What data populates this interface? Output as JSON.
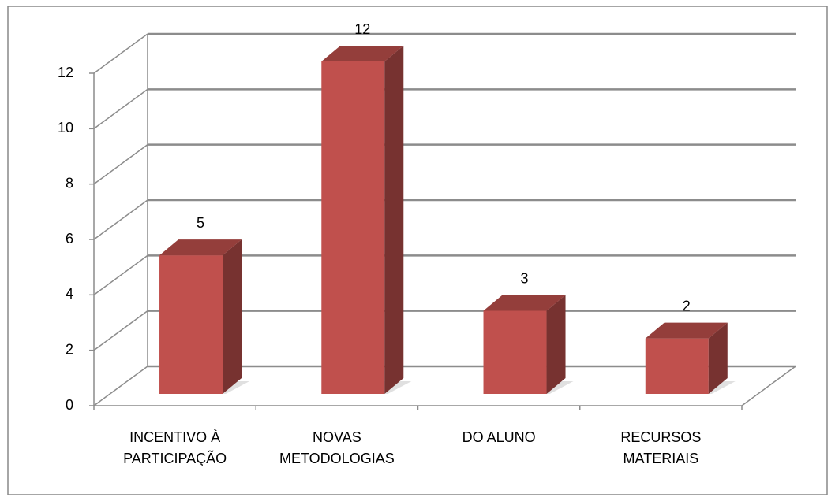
{
  "chart_data": {
    "type": "bar3d",
    "categories": [
      "INCENTIVO À PARTICIPAÇÃO",
      "NOVAS METODOLOGIAS",
      "DO ALUNO",
      "RECURSOS MATERIAIS"
    ],
    "values": [
      5,
      12,
      3,
      2
    ],
    "color": "#c0504d",
    "ylim": [
      0,
      12
    ],
    "yticks": [
      0,
      2,
      4,
      6,
      8,
      10,
      12
    ],
    "grid": true
  }
}
